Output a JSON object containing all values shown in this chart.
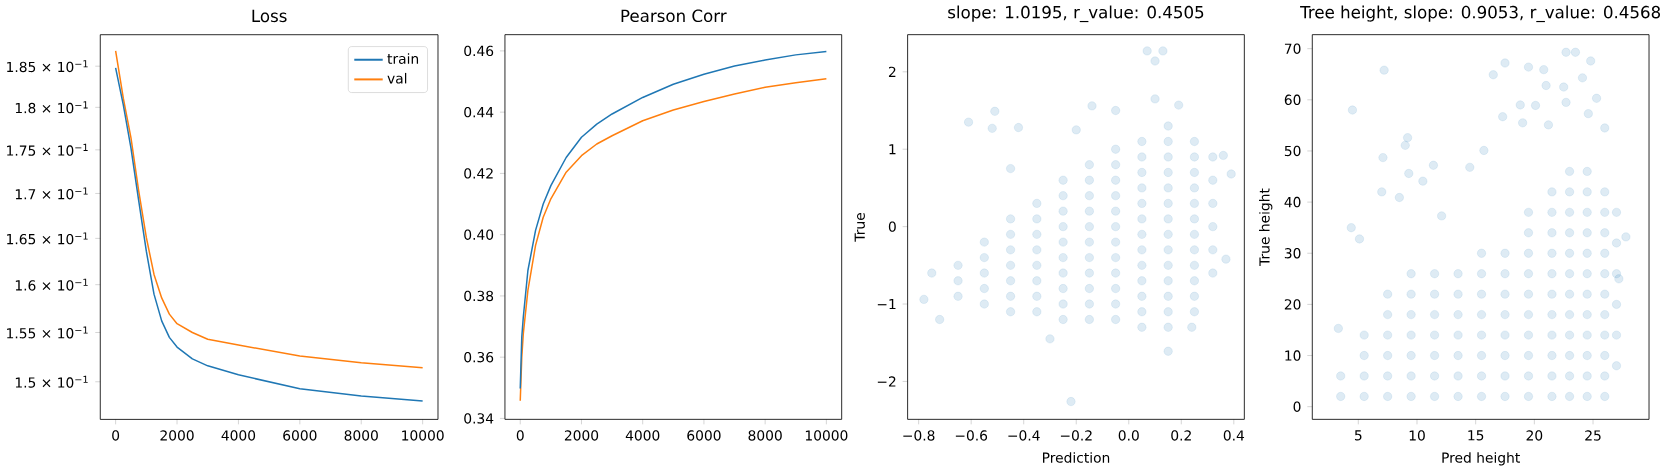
{
  "chart_data": [
    {
      "type": "line",
      "title": "Loss",
      "log": "y",
      "legend": "top right",
      "xlim": [
        -500,
        10500
      ],
      "xticks": [
        0,
        2000,
        4000,
        6000,
        8000,
        10000
      ],
      "ylim": [
        0.1463,
        0.1889
      ],
      "yticks": [
        {
          "value": 0.15,
          "label": "1.5 × 10$^{−1}$"
        },
        {
          "value": 0.155,
          "label": "1.55 × 10$^{−1}$"
        },
        {
          "value": 0.16,
          "label": "1.6 × 10$^{−1}$"
        },
        {
          "value": 0.165,
          "label": "1.65 × 10$^{−1}$"
        },
        {
          "value": 0.17,
          "label": "1.7 × 10$^{−1}$"
        },
        {
          "value": 0.175,
          "label": "1.75 × 10$^{−1}$"
        },
        {
          "value": 0.18,
          "label": "1.8 × 10$^{−1}$"
        },
        {
          "value": 0.185,
          "label": "1.85 × 10$^{−1}$"
        }
      ],
      "series": [
        {
          "name": "train",
          "color": "#1f77b4",
          "x": [
            0,
            250,
            500,
            750,
            1000,
            1250,
            1500,
            1750,
            2000,
            2500,
            3000,
            4000,
            6000,
            8000,
            10000
          ],
          "values": [
            0.1848,
            0.1803,
            0.1752,
            0.1692,
            0.1636,
            0.159,
            0.1562,
            0.1545,
            0.1535,
            0.1523,
            0.1516,
            0.1507,
            0.1493,
            0.1486,
            0.1481
          ]
        },
        {
          "name": "val",
          "color": "#ff7f0e",
          "x": [
            0,
            250,
            500,
            750,
            1000,
            1250,
            1500,
            1750,
            2000,
            2500,
            3000,
            4000,
            6000,
            8000,
            10000
          ],
          "values": [
            0.1869,
            0.1811,
            0.1764,
            0.1703,
            0.1651,
            0.1611,
            0.1586,
            0.1569,
            0.1559,
            0.155,
            0.1543,
            0.1537,
            0.1526,
            0.1519,
            0.1514
          ]
        }
      ]
    },
    {
      "type": "line",
      "title": "Pearson Corr",
      "xlim": [
        -500,
        10500
      ],
      "xticks": [
        0,
        2000,
        4000,
        6000,
        8000,
        10000
      ],
      "ylim": [
        0.3397,
        0.4653
      ],
      "yticks": [
        {
          "value": 0.34,
          "label": "0.34"
        },
        {
          "value": 0.36,
          "label": "0.36"
        },
        {
          "value": 0.38,
          "label": "0.38"
        },
        {
          "value": 0.4,
          "label": "0.40"
        },
        {
          "value": 0.42,
          "label": "0.42"
        },
        {
          "value": 0.44,
          "label": "0.44"
        },
        {
          "value": 0.46,
          "label": "0.46"
        }
      ],
      "series": [
        {
          "color": "#1f77b4",
          "x": [
            0,
            50,
            100,
            250,
            500,
            750,
            1000,
            1500,
            2000,
            2500,
            3000,
            4000,
            5000,
            6000,
            7000,
            8000,
            9000,
            10000
          ],
          "values": [
            0.3498,
            0.3666,
            0.3731,
            0.3883,
            0.4014,
            0.41,
            0.416,
            0.4252,
            0.4318,
            0.4361,
            0.4394,
            0.4448,
            0.4491,
            0.4524,
            0.4551,
            0.457,
            0.4587,
            0.4598
          ]
        },
        {
          "color": "#ff7f0e",
          "x": [
            0,
            50,
            100,
            250,
            500,
            750,
            1000,
            1500,
            2000,
            2500,
            3000,
            4000,
            5000,
            6000,
            7000,
            8000,
            9000,
            10000
          ],
          "values": [
            0.3458,
            0.36,
            0.3677,
            0.3818,
            0.3965,
            0.4057,
            0.4117,
            0.4204,
            0.4258,
            0.4296,
            0.4323,
            0.4372,
            0.4407,
            0.4435,
            0.4459,
            0.4481,
            0.4496,
            0.4509
          ]
        }
      ]
    },
    {
      "type": "scatter",
      "title": "slope: 1.0195, r_value: 0.4505",
      "xlabel": "Prediction",
      "ylabel": "True",
      "marker": "circle",
      "xlim": [
        -0.842,
        0.44
      ],
      "ylim": [
        -2.49,
        2.48
      ],
      "xticks": [
        {
          "value": -0.8,
          "label": "−0.8"
        },
        {
          "value": -0.6,
          "label": "−0.6"
        },
        {
          "value": -0.4,
          "label": "−0.4"
        },
        {
          "value": -0.2,
          "label": "−0.2"
        },
        {
          "value": 0,
          "label": "0.0"
        },
        {
          "value": 0.2,
          "label": "0.2"
        },
        {
          "value": 0.4,
          "label": "0.4"
        }
      ],
      "yticks": [
        {
          "value": -2,
          "label": "−2"
        },
        {
          "value": -1,
          "label": "−1"
        },
        0,
        1,
        2
      ],
      "series": [
        {
          "color": "#1f77b4",
          "x": [
            0.07,
            0.13,
            0.1,
            -0.22,
            0.15,
            -0.78,
            -0.61,
            -0.51,
            -0.52,
            -0.42,
            -0.2,
            -0.14,
            -0.05,
            0.1,
            0.19,
            0.36,
            0.39,
            0.37,
            -0.72,
            -0.3,
            -0.45,
            0.24,
            -0.75,
            -0.65,
            -0.65,
            -0.65,
            -0.55,
            -0.55,
            -0.55,
            -0.55,
            -0.55,
            -0.45,
            -0.45,
            -0.45,
            -0.45,
            -0.45,
            -0.45,
            -0.45,
            -0.35,
            -0.35,
            -0.35,
            -0.35,
            -0.35,
            -0.35,
            -0.35,
            -0.35,
            -0.25,
            -0.25,
            -0.25,
            -0.25,
            -0.25,
            -0.25,
            -0.25,
            -0.25,
            -0.25,
            -0.25,
            -0.15,
            -0.15,
            -0.15,
            -0.15,
            -0.15,
            -0.15,
            -0.15,
            -0.15,
            -0.15,
            -0.15,
            -0.15,
            -0.05,
            -0.05,
            -0.05,
            -0.05,
            -0.05,
            -0.05,
            -0.05,
            -0.05,
            -0.05,
            -0.05,
            -0.05,
            -0.05,
            0.05,
            0.05,
            0.05,
            0.05,
            0.05,
            0.05,
            0.05,
            0.05,
            0.05,
            0.05,
            0.05,
            0.05,
            0.05,
            0.15,
            0.15,
            0.15,
            0.15,
            0.15,
            0.15,
            0.15,
            0.15,
            0.15,
            0.15,
            0.15,
            0.15,
            0.15,
            0.15,
            0.25,
            0.25,
            0.25,
            0.25,
            0.25,
            0.25,
            0.25,
            0.25,
            0.25,
            0.25,
            0.25,
            0.25,
            0.32,
            0.32,
            0.32,
            0.32,
            0.32,
            0.32
          ],
          "values": [
            2.27,
            2.27,
            2.14,
            -2.26,
            -1.61,
            -0.94,
            1.35,
            1.49,
            1.27,
            1.28,
            1.25,
            1.56,
            1.5,
            1.65,
            1.57,
            0.92,
            0.68,
            -0.42,
            -1.2,
            -1.45,
            0.75,
            -1.3,
            -0.6,
            -0.9,
            -0.7,
            -0.5,
            -1.0,
            -0.8,
            -0.6,
            -0.4,
            -0.2,
            -1.1,
            -0.9,
            -0.7,
            -0.5,
            -0.3,
            -0.1,
            0.1,
            -1.1,
            -0.9,
            -0.7,
            -0.5,
            -0.3,
            -0.1,
            0.1,
            0.3,
            -1.2,
            -1.0,
            -0.8,
            -0.6,
            -0.4,
            -0.2,
            0,
            0.2,
            0.4,
            0.6,
            -1.2,
            -1.0,
            -0.8,
            -0.6,
            -0.4,
            -0.2,
            0,
            0.2,
            0.4,
            0.6,
            0.8,
            -1.2,
            -1.0,
            -0.8,
            -0.6,
            -0.4,
            -0.2,
            0,
            0.2,
            0.4,
            0.6,
            0.8,
            1.0,
            -1.3,
            -1.1,
            -0.9,
            -0.7,
            -0.5,
            -0.3,
            -0.1,
            0.1,
            0.3,
            0.5,
            0.7,
            0.9,
            1.1,
            -1.3,
            -1.1,
            -0.9,
            -0.7,
            -0.5,
            -0.3,
            -0.1,
            0.1,
            0.3,
            0.5,
            0.7,
            0.9,
            1.1,
            1.3,
            -1.1,
            -0.9,
            -0.7,
            -0.5,
            -0.3,
            -0.1,
            0.1,
            0.3,
            0.5,
            0.7,
            0.9,
            1.1,
            -0.6,
            -0.3,
            0,
            0.3,
            0.6,
            0.9
          ]
        }
      ]
    },
    {
      "type": "scatter",
      "title": "Tree height, slope: 0.9053, r_value: 0.4568",
      "xlabel": "Pred height",
      "ylabel": "True height",
      "marker": "circle",
      "xlim": [
        1.08,
        29.77
      ],
      "ylim": [
        -2.48,
        72.74
      ],
      "xticks": [
        5,
        10,
        15,
        20,
        25
      ],
      "yticks": [
        0,
        10,
        20,
        30,
        40,
        50,
        60,
        70
      ],
      "series": [
        {
          "color": "#1f77b4",
          "x": [
            22.7,
            23.5,
            24.8,
            17.5,
            7.2,
            19.5,
            20.8,
            16.5,
            24.1,
            21,
            22.5,
            25.3,
            4.5,
            18.8,
            20.1,
            22.7,
            17.3,
            19,
            21.2,
            24.6,
            26,
            9.2,
            9,
            15.7,
            7.1,
            11.4,
            14.5,
            9.3,
            7,
            8.5,
            10.5,
            12.1,
            4.4,
            5.1,
            27.8,
            27.2,
            3.3,
            3.5,
            3.5,
            5.5,
            5.5,
            5.5,
            5.5,
            7.5,
            7.5,
            7.5,
            7.5,
            7.5,
            7.5,
            9.5,
            9.5,
            9.5,
            9.5,
            9.5,
            9.5,
            9.5,
            11.5,
            11.5,
            11.5,
            11.5,
            11.5,
            11.5,
            11.5,
            13.5,
            13.5,
            13.5,
            13.5,
            13.5,
            13.5,
            13.5,
            15.5,
            15.5,
            15.5,
            15.5,
            15.5,
            15.5,
            15.5,
            15.5,
            17.5,
            17.5,
            17.5,
            17.5,
            17.5,
            17.5,
            17.5,
            17.5,
            19.5,
            19.5,
            19.5,
            19.5,
            19.5,
            19.5,
            19.5,
            19.5,
            19.5,
            19.5,
            21.5,
            21.5,
            21.5,
            21.5,
            21.5,
            21.5,
            21.5,
            21.5,
            21.5,
            21.5,
            21.5,
            23,
            23,
            23,
            23,
            23,
            23,
            23,
            23,
            23,
            23,
            23,
            23,
            24.5,
            24.5,
            24.5,
            24.5,
            24.5,
            24.5,
            24.5,
            24.5,
            24.5,
            24.5,
            24.5,
            24.5,
            26,
            26,
            26,
            26,
            26,
            26,
            26,
            26,
            26,
            26,
            26,
            27,
            27,
            27,
            27,
            27,
            27
          ],
          "values": [
            69.3,
            69.3,
            67.6,
            67.2,
            65.8,
            66.4,
            65.9,
            64.9,
            64.3,
            62.8,
            62.5,
            60.3,
            58,
            59,
            58.9,
            59.5,
            56.7,
            55.5,
            55.1,
            57.3,
            54.5,
            52.6,
            51.1,
            50.1,
            48.7,
            47.2,
            46.8,
            45.6,
            42,
            40.9,
            44.1,
            37.3,
            35,
            32.8,
            33.2,
            25,
            15.3,
            2,
            6,
            2,
            6,
            10,
            14,
            2,
            6,
            10,
            14,
            18,
            22,
            2,
            6,
            10,
            14,
            18,
            22,
            26,
            2,
            6,
            10,
            14,
            18,
            22,
            26,
            2,
            6,
            10,
            14,
            18,
            22,
            26,
            2,
            6,
            10,
            14,
            18,
            22,
            26,
            30,
            2,
            6,
            10,
            14,
            18,
            22,
            26,
            30,
            2,
            6,
            10,
            14,
            18,
            22,
            26,
            30,
            34,
            38,
            2,
            6,
            10,
            14,
            18,
            22,
            26,
            30,
            34,
            38,
            42,
            2,
            6,
            10,
            14,
            18,
            22,
            26,
            30,
            34,
            38,
            42,
            46,
            2,
            6,
            10,
            14,
            18,
            22,
            26,
            30,
            34,
            38,
            42,
            46,
            2,
            6,
            10,
            14,
            18,
            22,
            26,
            30,
            34,
            38,
            42,
            8,
            14,
            20,
            26,
            32,
            38
          ]
        }
      ]
    }
  ]
}
